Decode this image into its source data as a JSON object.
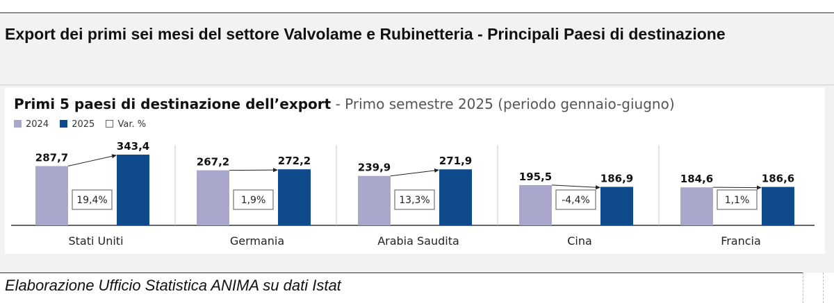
{
  "page": {
    "title": "Export dei primi sei mesi del settore Valvolame e Rubinetteria - Principali Paesi di destinazione",
    "source": "Elaborazione Ufficio Statistica ANIMA su dati Istat"
  },
  "chart_data": {
    "type": "bar",
    "title": "Primi 5 paesi di destinazione dell’export",
    "subtitle": " - Primo semestre 2025 (periodo gennaio-giugno)",
    "legend": [
      {
        "label": "2024",
        "color": "#a9a8cc"
      },
      {
        "label": "2025",
        "color": "#0f4a8c"
      },
      {
        "label": "Var. %",
        "color": "#ffffff"
      }
    ],
    "legend_position": "top-left",
    "categories": [
      "Stati Uniti",
      "Germania",
      "Arabia Saudita",
      "Cina",
      "Francia"
    ],
    "series": [
      {
        "name": "2024",
        "values": [
          287.7,
          267.2,
          239.9,
          195.5,
          184.6
        ],
        "labels": [
          "287,7",
          "267,2",
          "239,9",
          "195,5",
          "184,6"
        ]
      },
      {
        "name": "2025",
        "values": [
          343.4,
          272.2,
          271.9,
          186.9,
          186.6
        ],
        "labels": [
          "343,4",
          "272,2",
          "271,9",
          "186,9",
          "186,6"
        ]
      }
    ],
    "variation_labels": [
      "19,4%",
      "1,9%",
      "13,3%",
      "-4,4%",
      "1,1%"
    ],
    "ylim": [
      0,
      343.4
    ],
    "grid": false,
    "xlabel": "",
    "ylabel": ""
  }
}
